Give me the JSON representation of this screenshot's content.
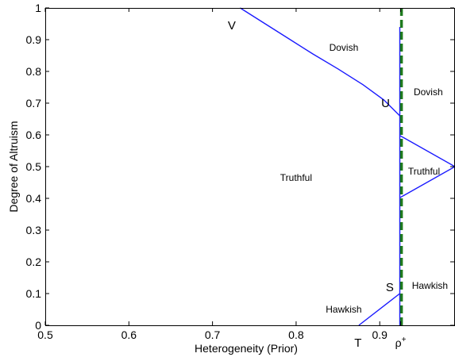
{
  "chart_data": {
    "type": "line",
    "title": "",
    "xlabel": "Heterogeneity (Prior)",
    "ylabel": "Degree of Altruism",
    "xlim": [
      0.5,
      0.99
    ],
    "ylim": [
      0,
      1
    ],
    "grid": false,
    "legend": "none",
    "x_ticks": [
      {
        "value": 0.5,
        "label": "0.5"
      },
      {
        "value": 0.6,
        "label": "0.6"
      },
      {
        "value": 0.7,
        "label": "0.7"
      },
      {
        "value": 0.8,
        "label": "0.8"
      },
      {
        "value": 0.9,
        "label": "0.9"
      },
      {
        "value": 0.925,
        "label": "ρ+"
      }
    ],
    "y_ticks": [
      {
        "value": 0,
        "label": "0"
      },
      {
        "value": 0.1,
        "label": "0.1"
      },
      {
        "value": 0.2,
        "label": "0.2"
      },
      {
        "value": 0.3,
        "label": "0.3"
      },
      {
        "value": 0.4,
        "label": "0.4"
      },
      {
        "value": 0.5,
        "label": "0.5"
      },
      {
        "value": 0.6,
        "label": "0.6"
      },
      {
        "value": 0.7,
        "label": "0.7"
      },
      {
        "value": 0.8,
        "label": "0.8"
      },
      {
        "value": 0.9,
        "label": "0.9"
      },
      {
        "value": 1,
        "label": "1"
      }
    ],
    "series": [
      {
        "color": "#1a1aff",
        "style": "solid",
        "points": [
          [
            0.733,
            1.0
          ],
          [
            0.76,
            0.955
          ],
          [
            0.79,
            0.905
          ],
          [
            0.82,
            0.855
          ],
          [
            0.85,
            0.808
          ],
          [
            0.88,
            0.758
          ],
          [
            0.905,
            0.71
          ],
          [
            0.924,
            0.66
          ]
        ]
      },
      {
        "color": "#1a1aff",
        "style": "solid",
        "points": [
          [
            0.924,
            0.94
          ],
          [
            0.924,
            0.0
          ]
        ]
      },
      {
        "color": "#1a1aff",
        "style": "solid",
        "points": [
          [
            0.924,
            0.598
          ],
          [
            0.99,
            0.5
          ],
          [
            0.924,
            0.402
          ]
        ]
      },
      {
        "color": "#1a1aff",
        "style": "solid",
        "points": [
          [
            0.875,
            0.0
          ],
          [
            0.924,
            0.1
          ]
        ]
      },
      {
        "color": "#1f7a1f",
        "style": "dashed",
        "points": [
          [
            0.926,
            1.0
          ],
          [
            0.926,
            0.0
          ]
        ]
      }
    ],
    "region_labels": [
      {
        "text": "Dovish",
        "x": 0.857,
        "y": 0.875
      },
      {
        "text": "Dovish",
        "x": 0.958,
        "y": 0.735
      },
      {
        "text": "Truthful",
        "x": 0.8,
        "y": 0.465
      },
      {
        "text": "Truthful",
        "x": 0.953,
        "y": 0.485
      },
      {
        "text": "Hawkish",
        "x": 0.96,
        "y": 0.125
      },
      {
        "text": "Hawkish",
        "x": 0.857,
        "y": 0.05
      }
    ],
    "point_labels": [
      {
        "text": "V",
        "x": 0.723,
        "y": 0.945
      },
      {
        "text": "U",
        "x": 0.907,
        "y": 0.7
      },
      {
        "text": "S",
        "x": 0.912,
        "y": 0.12
      },
      {
        "text": "T",
        "x": 0.874,
        "y": -0.055
      }
    ]
  }
}
